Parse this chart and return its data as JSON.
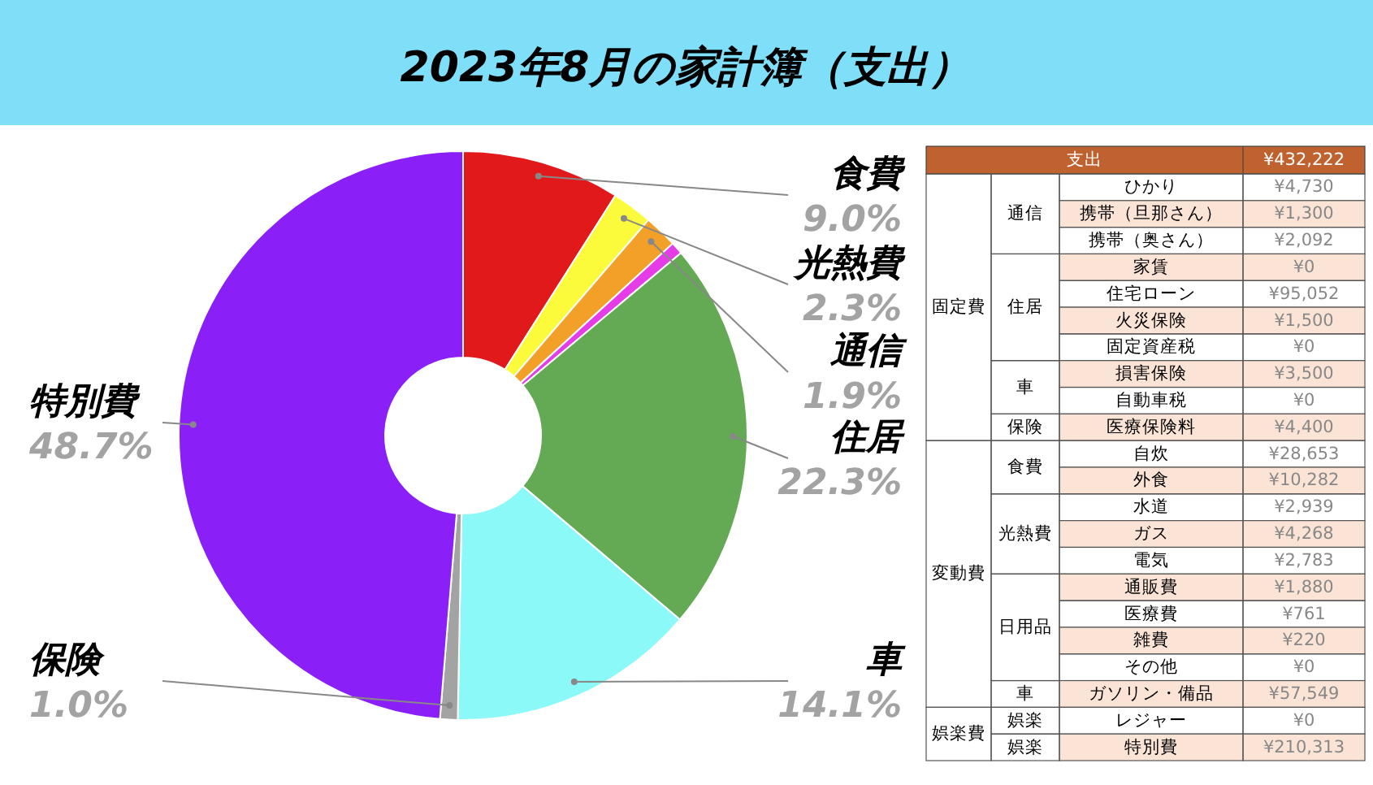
{
  "chart_data": [
    {
      "type": "donut",
      "title": "2023年8月の家計簿（支出）",
      "categories": [
        "食費",
        "光熱費",
        "通信",
        null,
        "住居",
        "車",
        "保険",
        "特別費"
      ],
      "values": [
        9.0,
        2.3,
        1.9,
        0.7,
        22.3,
        14.1,
        1.0,
        48.7
      ],
      "value_labels": [
        "9.0%",
        "2.3%",
        "1.9%",
        null,
        "22.3%",
        "14.1%",
        "1.0%",
        "48.7%"
      ],
      "colors": [
        "#e2191b",
        "#fbfb3c",
        "#f2a027",
        "#e63ce8",
        "#64aa55",
        "#8cf9f9",
        "#a3a3a3",
        "#8a1ff8"
      ]
    },
    {
      "type": "other",
      "title": "支出",
      "categories": [
        "ひかり",
        "携帯（旦那さん）",
        "携帯（奥さん）",
        "家賃",
        "住宅ローン",
        "火災保険",
        "固定資産税",
        "損害保険",
        "自動車税",
        "医療保険料",
        "自炊",
        "外食",
        "水道",
        "ガス",
        "電気",
        "通販費",
        "医療費",
        "雑費",
        "その他",
        "ガソリン・備品",
        "レジャー",
        "特別費"
      ],
      "value_labels": [
        "¥4,730",
        "¥1,300",
        "¥2,092",
        "¥0",
        "¥95,052",
        "¥1,500",
        "¥0",
        "¥3,500",
        "¥0",
        "¥4,400",
        "¥28,653",
        "¥10,282",
        "¥2,939",
        "¥4,268",
        "¥2,783",
        "¥1,880",
        "¥761",
        "¥220",
        "¥0",
        "¥57,549",
        "¥0",
        "¥210,313"
      ],
      "annotations": [
        "¥432,222",
        "固定費",
        "変動費",
        "娯楽費",
        "通信",
        "住居",
        "車",
        "保険",
        "食費",
        "光熱費",
        "日用品",
        "車",
        "娯楽",
        "娯楽"
      ]
    }
  ]
}
